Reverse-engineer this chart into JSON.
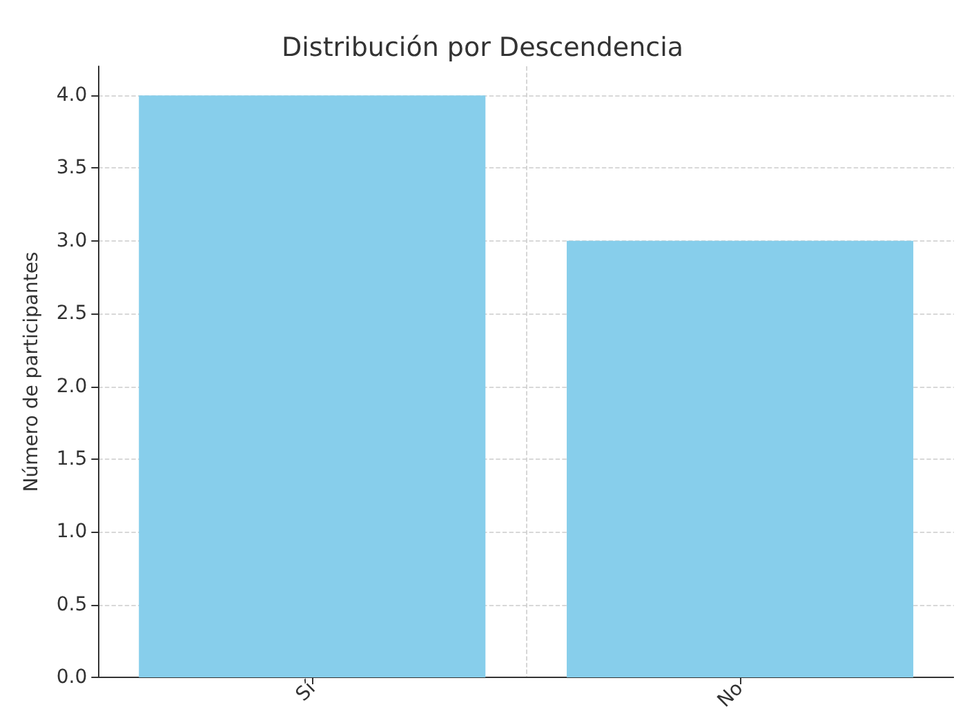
{
  "chart_data": {
    "type": "bar",
    "title": "Distribución por Descendencia",
    "ylabel": "Número de participantes",
    "categories": [
      "Sí",
      "No"
    ],
    "values": [
      4,
      3
    ],
    "color": "#87ceeb",
    "ylim": [
      0,
      4.2
    ],
    "yticks": [
      {
        "value": 0,
        "label": "0.0"
      },
      {
        "value": 0.5,
        "label": "0.5"
      },
      {
        "value": 1,
        "label": "1.0"
      },
      {
        "value": 1.5,
        "label": "1.5"
      },
      {
        "value": 2,
        "label": "2.0"
      },
      {
        "value": 2.5,
        "label": "2.5"
      },
      {
        "value": 3,
        "label": "3.0"
      },
      {
        "value": 3.5,
        "label": "3.5"
      },
      {
        "value": 4,
        "label": "4.0"
      }
    ],
    "grid": true
  }
}
